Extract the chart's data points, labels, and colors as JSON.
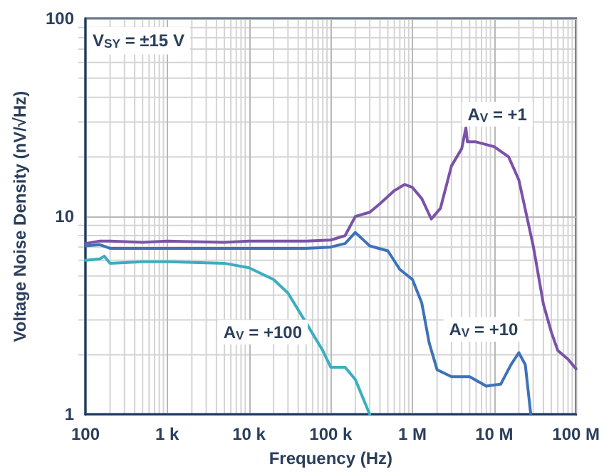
{
  "chart_data": {
    "type": "line",
    "xlabel": "Frequency (Hz)",
    "ylabel": "Voltage Noise Density (nV/√Hz)",
    "log": "xy",
    "grid": true,
    "legend": false,
    "xlim": [
      100,
      100000000
    ],
    "ylim": [
      1,
      100
    ],
    "xticks": [
      {
        "value": 100,
        "label": "100"
      },
      {
        "value": 1000,
        "label": "1 k"
      },
      {
        "value": 10000,
        "label": "10 k"
      },
      {
        "value": 100000,
        "label": "100 k"
      },
      {
        "value": 1000000,
        "label": "1 M"
      },
      {
        "value": 10000000,
        "label": "10 M"
      },
      {
        "value": 100000000,
        "label": "100 M"
      }
    ],
    "yticks": [
      1,
      10,
      100
    ],
    "annotations": [
      "V$_{SY}$ = ±15 V"
    ],
    "series": [
      {
        "name": "A$_{V}$ = +1",
        "color": "#7b52a8",
        "x": [
          100,
          150,
          200,
          500,
          1000,
          5000,
          10000,
          50000,
          100000,
          150000,
          200000,
          300000,
          400000,
          600000,
          800000,
          1000000,
          1300000,
          1700000,
          2200000,
          3000000,
          4000000,
          4500000,
          4700000,
          6000000,
          10000000,
          15000000,
          20000000,
          30000000,
          40000000,
          50000000,
          60000000,
          80000000,
          100000000
        ],
        "values": [
          7.3,
          7.5,
          7.5,
          7.4,
          7.5,
          7.4,
          7.5,
          7.5,
          7.6,
          8,
          10,
          10.5,
          11.6,
          13.5,
          14.5,
          14,
          12.3,
          9.7,
          11,
          18,
          22,
          28,
          23.8,
          23.8,
          22.5,
          20,
          15.3,
          7.1,
          3.6,
          2.6,
          2.1,
          1.9,
          1.7
        ]
      },
      {
        "name": "A$_{V}$ = +10",
        "color": "#3d72b8",
        "x": [
          100,
          150,
          200,
          500,
          1000,
          5000,
          10000,
          50000,
          100000,
          150000,
          200000,
          300000,
          500000,
          700000,
          1000000,
          1300000,
          1600000,
          2000000,
          3000000,
          5000000,
          8000000,
          12000000,
          16000000,
          20000000,
          24000000,
          28000000
        ],
        "values": [
          7.1,
          7.2,
          6.9,
          6.9,
          6.9,
          6.9,
          6.9,
          6.9,
          7,
          7.3,
          8.3,
          7.1,
          6.7,
          5.4,
          4.8,
          3.65,
          2.3,
          1.68,
          1.55,
          1.55,
          1.39,
          1.42,
          1.78,
          2.05,
          1.78,
          1
        ]
      },
      {
        "name": "A$_{V}$ = +100",
        "color": "#3aaec0",
        "x": [
          100,
          150,
          170,
          200,
          500,
          1000,
          5000,
          10000,
          20000,
          30000,
          50000,
          80000,
          100000,
          150000,
          200000,
          300000
        ],
        "values": [
          6,
          6.1,
          6.3,
          5.8,
          5.9,
          5.9,
          5.8,
          5.5,
          4.8,
          4.1,
          2.9,
          2.1,
          1.73,
          1.73,
          1.5,
          1
        ]
      }
    ]
  }
}
